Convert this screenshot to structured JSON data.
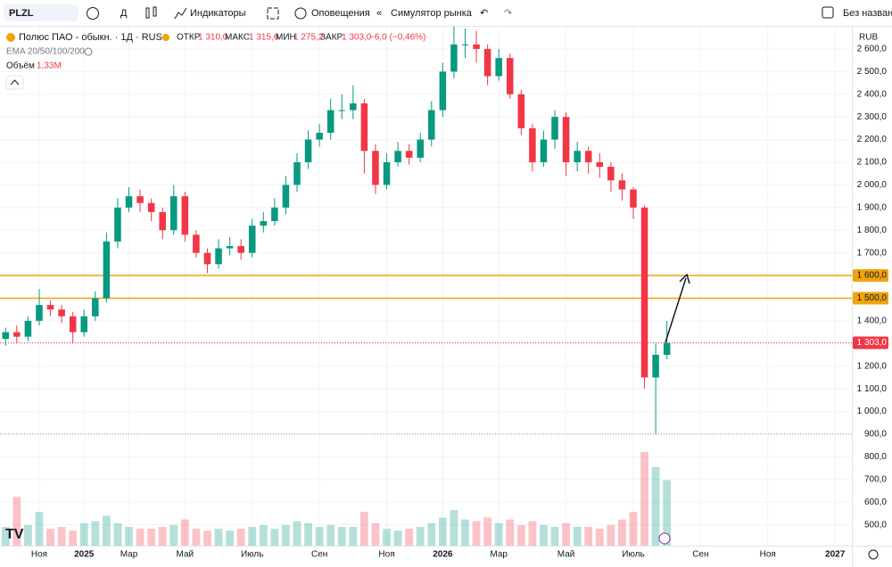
{
  "ui": {
    "symbol": "PLZL",
    "interval": "Д",
    "indicators": "Индикаторы",
    "alerts": "Оповещения",
    "replay": "Симулятор рынка",
    "layout_name": "Без названия",
    "instrument": "Полюс ПАО - обыкн. · 1Д · RUS",
    "open_label": "ОТКР",
    "open": "1 310,0",
    "high_label": "МАКС",
    "high": "1 315,6",
    "low_label": "МИН",
    "low": "1 275,2",
    "close_label": "ЗАКР",
    "close": "1 303,0",
    "change": "−6,0 (−0,46%)",
    "ema": "EMA 20/50/100/200",
    "volume_label": "Объём",
    "volume": "1,33M",
    "currency": "RUB"
  },
  "chart_data": {
    "type": "candlestick",
    "up_color": "#089981",
    "down_color": "#f23645",
    "grid": true,
    "categories": [
      null,
      null,
      null,
      "Ноя",
      null,
      null,
      null,
      "2025",
      null,
      null,
      null,
      "Мар",
      null,
      null,
      null,
      null,
      "Май",
      null,
      null,
      null,
      null,
      null,
      "Июль",
      null,
      null,
      null,
      null,
      null,
      "Сен",
      null,
      null,
      null,
      null,
      null,
      "Ноя",
      null,
      null,
      null,
      null,
      "2026",
      null,
      null,
      null,
      null,
      "Мар",
      null,
      null,
      null,
      null,
      null,
      "Май",
      null,
      null,
      null,
      null,
      null,
      "Июль",
      null,
      null,
      null,
      null,
      null,
      "Сен",
      null,
      null,
      null,
      null,
      null,
      "Ноя",
      null,
      null,
      null,
      null,
      null,
      "2027",
      null
    ],
    "open": [
      1320,
      1350,
      1330,
      1400,
      1470,
      1450,
      1420,
      1350,
      1420,
      1500,
      1750,
      1900,
      1950,
      1920,
      1880,
      1800,
      1950,
      1780,
      1700,
      1650,
      1720,
      1730,
      1700,
      1820,
      1840,
      1900,
      2000,
      2100,
      2200,
      2230,
      2330,
      2330,
      2360,
      2150,
      2000,
      2100,
      2150,
      2120,
      2200,
      2330,
      2500,
      2620,
      2620,
      2600,
      2480,
      2560,
      2400,
      2250,
      2100,
      2200,
      2300,
      2100,
      2150,
      2100,
      2080,
      2020,
      1980,
      1900,
      1150,
      1250,
      null,
      null,
      null,
      null,
      null,
      null,
      null,
      null,
      null,
      null,
      null,
      null,
      null,
      null,
      null,
      null
    ],
    "high": [
      1370,
      1380,
      1420,
      1540,
      1490,
      1470,
      1440,
      1450,
      1530,
      1790,
      1940,
      1990,
      1980,
      1940,
      1900,
      2000,
      1970,
      1800,
      1720,
      1760,
      1770,
      1760,
      1850,
      1880,
      1940,
      2040,
      2140,
      2240,
      2270,
      2380,
      2400,
      2440,
      2380,
      2180,
      2140,
      2190,
      2180,
      2230,
      2370,
      2540,
      2700,
      2690,
      2680,
      2620,
      2600,
      2580,
      2420,
      2270,
      2240,
      2330,
      2320,
      2190,
      2170,
      2140,
      2100,
      2050,
      1990,
      1910,
      1300,
      1400,
      null,
      null,
      null,
      null,
      null,
      null,
      null,
      null,
      null,
      null,
      null,
      null,
      null,
      null,
      null,
      null
    ],
    "low": [
      1290,
      1300,
      1310,
      1380,
      1420,
      1390,
      1300,
      1330,
      1400,
      1480,
      1720,
      1880,
      1880,
      1840,
      1760,
      1780,
      1750,
      1680,
      1610,
      1630,
      1690,
      1670,
      1680,
      1790,
      1820,
      1870,
      1970,
      2070,
      2170,
      2200,
      2290,
      2290,
      2050,
      1960,
      1980,
      2080,
      2090,
      2100,
      2170,
      2300,
      2470,
      2560,
      2540,
      2440,
      2460,
      2380,
      2220,
      2060,
      2080,
      2160,
      2040,
      2060,
      2050,
      2030,
      1970,
      1930,
      1850,
      1100,
      900,
      1230,
      null,
      null,
      null,
      null,
      null,
      null,
      null,
      null,
      null,
      null,
      null,
      null,
      null,
      null,
      null,
      null
    ],
    "close": [
      1350,
      1330,
      1400,
      1470,
      1450,
      1420,
      1350,
      1420,
      1500,
      1750,
      1900,
      1950,
      1920,
      1880,
      1800,
      1950,
      1780,
      1700,
      1650,
      1720,
      1730,
      1700,
      1820,
      1840,
      1900,
      2000,
      2100,
      2200,
      2230,
      2330,
      2330,
      2360,
      2150,
      2000,
      2100,
      2150,
      2120,
      2200,
      2330,
      2500,
      2620,
      2620,
      2600,
      2480,
      2560,
      2400,
      2250,
      2100,
      2200,
      2300,
      2100,
      2150,
      2100,
      2080,
      2020,
      1980,
      1900,
      1150,
      1250,
      1303,
      null,
      null,
      null,
      null,
      null,
      null,
      null,
      null,
      null,
      null,
      null,
      null,
      null,
      null,
      null,
      null
    ],
    "volume": [
      1.0,
      2.6,
      1.1,
      1.8,
      0.9,
      1.0,
      0.8,
      1.2,
      1.3,
      1.6,
      1.2,
      1.0,
      0.9,
      0.9,
      1.0,
      1.1,
      1.4,
      0.9,
      0.8,
      0.9,
      0.8,
      0.9,
      1.0,
      1.1,
      0.9,
      1.1,
      1.3,
      1.2,
      1.0,
      1.1,
      1.0,
      1.0,
      1.8,
      1.2,
      0.9,
      0.8,
      0.9,
      1.0,
      1.2,
      1.5,
      1.9,
      1.4,
      1.3,
      1.5,
      1.2,
      1.4,
      1.1,
      1.3,
      1.1,
      1.0,
      1.2,
      1.0,
      1.0,
      0.9,
      1.1,
      1.4,
      1.8,
      5.0,
      4.2,
      3.5,
      null,
      null,
      null,
      null,
      null,
      null,
      null,
      null,
      null,
      null,
      null,
      null,
      null,
      null,
      null,
      null
    ],
    "ylim": [
      408,
      2698
    ],
    "yticks": [
      {
        "value": 500,
        "label": "500,0"
      },
      {
        "value": 600,
        "label": "600,0"
      },
      {
        "value": 700,
        "label": "700,0"
      },
      {
        "value": 800,
        "label": "800,0"
      },
      {
        "value": 900,
        "label": "900,0"
      },
      {
        "value": 1000,
        "label": "1 000,0"
      },
      {
        "value": 1100,
        "label": "1 100,0"
      },
      {
        "value": 1200,
        "label": "1 200,0"
      },
      {
        "value": 1300,
        "label": "1 300,0"
      },
      {
        "value": 1400,
        "label": "1 400,0"
      },
      {
        "value": 1500,
        "label": "1 500,0"
      },
      {
        "value": 1600,
        "label": "1 600,0"
      },
      {
        "value": 1700,
        "label": "1 700,0"
      },
      {
        "value": 1800,
        "label": "1 800,0"
      },
      {
        "value": 1900,
        "label": "1 900,0"
      },
      {
        "value": 2000,
        "label": "2 000,0"
      },
      {
        "value": 2100,
        "label": "2 100,0"
      },
      {
        "value": 2200,
        "label": "2 200,0"
      },
      {
        "value": 2300,
        "label": "2 300,0"
      },
      {
        "value": 2400,
        "label": "2 400,0"
      },
      {
        "value": 2500,
        "label": "2 500,0"
      },
      {
        "value": 2600,
        "label": "2 600,0"
      }
    ],
    "levels": [
      {
        "value": 1600,
        "label": "1 600,0",
        "color": "#f0a30a",
        "style": "solid"
      },
      {
        "value": 1500,
        "label": "1 500,0",
        "color": "#f0a30a",
        "style": "solid"
      },
      {
        "value": 1303,
        "label": "1 303,0",
        "color": "#f23645",
        "style": "dotted"
      },
      {
        "value": 900,
        "color": "#9598a1",
        "style": "dotted"
      }
    ]
  }
}
